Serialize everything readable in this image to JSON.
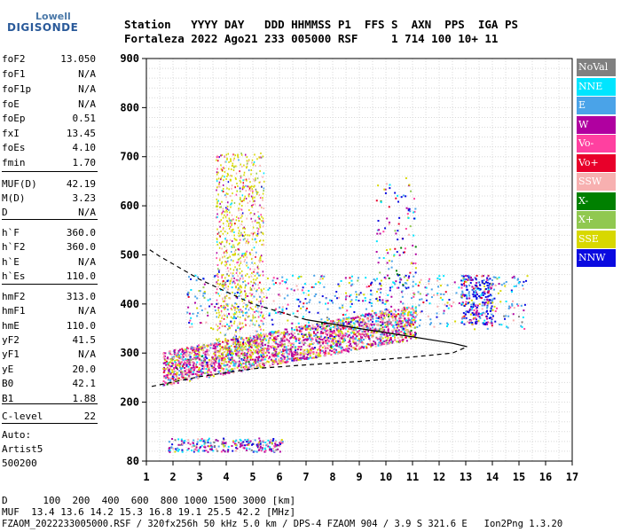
{
  "logo": {
    "top": "Lowell",
    "bottom": "DIGISONDE"
  },
  "header": {
    "line1": "Station   YYYY DAY   DDD HHMMSS P1  FFS S  AXN  PPS  IGA PS",
    "line2": "Fortaleza 2022 Ago21 233 005000 RSF     1 714 100 10+ 11"
  },
  "params": [
    {
      "n": "foF2",
      "v": "13.050"
    },
    {
      "n": "foF1",
      "v": "N/A"
    },
    {
      "n": "foF1p",
      "v": "N/A"
    },
    {
      "n": "foE",
      "v": "N/A"
    },
    {
      "n": "foEp",
      "v": "0.51"
    },
    {
      "n": "fxI",
      "v": "13.45"
    },
    {
      "n": "foEs",
      "v": "4.10"
    },
    {
      "n": "fmin",
      "v": "1.70"
    },
    {
      "n": "MUF(D)",
      "v": "42.19"
    },
    {
      "n": "M(D)",
      "v": "3.23"
    },
    {
      "n": "D",
      "v": "N/A"
    },
    {
      "n": "h`F",
      "v": "360.0"
    },
    {
      "n": "h`F2",
      "v": "360.0"
    },
    {
      "n": "h`E",
      "v": "N/A"
    },
    {
      "n": "h`Es",
      "v": "110.0"
    },
    {
      "n": "hmF2",
      "v": "313.0"
    },
    {
      "n": "hmF1",
      "v": "N/A"
    },
    {
      "n": "hmE",
      "v": "110.0"
    },
    {
      "n": "yF2",
      "v": "41.5"
    },
    {
      "n": "yF1",
      "v": "N/A"
    },
    {
      "n": "yE",
      "v": "20.0"
    },
    {
      "n": "B0",
      "v": "42.1"
    },
    {
      "n": "B1",
      "v": "1.88"
    },
    {
      "n": "C-level",
      "v": "22"
    }
  ],
  "autoscaling": {
    "l1": "Auto:",
    "l2": "Artist5",
    "l3": "500200"
  },
  "legend": [
    {
      "label": "NoVal",
      "color": "#808080"
    },
    {
      "label": "NNE",
      "color": "#00e5ff"
    },
    {
      "label": "E",
      "color": "#4aa3e8"
    },
    {
      "label": "W",
      "color": "#b000a0"
    },
    {
      "label": "Vo-",
      "color": "#ff40a0"
    },
    {
      "label": "Vo+",
      "color": "#e8002a"
    },
    {
      "label": "SSW",
      "color": "#f7b0b0"
    },
    {
      "label": "X-",
      "color": "#008000"
    },
    {
      "label": "X+",
      "color": "#90c850"
    },
    {
      "label": "SSE",
      "color": "#d8d800"
    },
    {
      "label": "NNW",
      "color": "#0a0ae0"
    }
  ],
  "footer": {
    "d_row": "D      100  200  400  600  800 1000 1500 3000 [km]",
    "muf_row": "MUF  13.4 13.6 14.2 15.3 16.8 19.1 25.5 42.2 [MHz]",
    "file_row": "FZAOM_2022233005000.RSF / 320fx256h 50 kHz 5.0 km / DPS-4 FZAOM 904 / 3.9 S 321.6 E   Ion2Png 1.3.20"
  },
  "chart_data": {
    "type": "scatter",
    "xlim": [
      1,
      17
    ],
    "ylim": [
      80,
      900
    ],
    "xticks": [
      1,
      2,
      3,
      4,
      5,
      6,
      7,
      8,
      9,
      10,
      11,
      12,
      13,
      14,
      15,
      16,
      17
    ],
    "yticks": [
      80,
      200,
      300,
      400,
      500,
      600,
      700,
      800,
      900
    ],
    "grid": true,
    "legend_position": "right"
  }
}
